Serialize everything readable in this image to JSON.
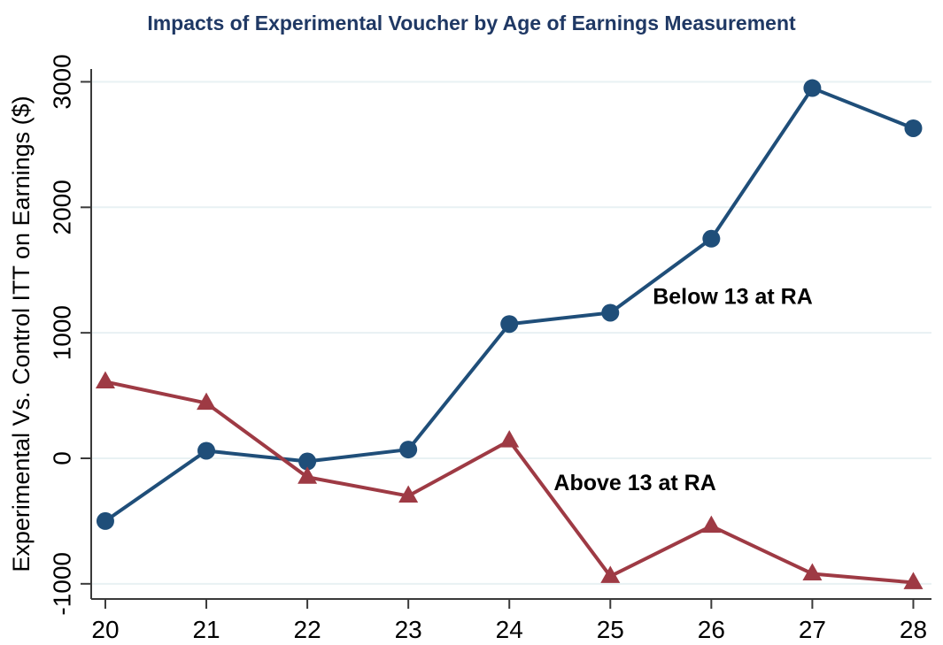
{
  "chart_data": {
    "type": "line",
    "title": "Impacts of Experimental Voucher by Age of Earnings Measurement",
    "ylabel": "Experimental Vs. Control ITT on Earnings ($)",
    "xlabel": "",
    "x": [
      20,
      21,
      22,
      23,
      24,
      25,
      26,
      27,
      28
    ],
    "series": [
      {
        "name": "Below 13 at RA",
        "marker": "circle",
        "color": "#1f4e79",
        "values": [
          -500,
          60,
          -25,
          70,
          1070,
          1160,
          1750,
          2950,
          2630
        ]
      },
      {
        "name": "Above 13 at RA",
        "marker": "triangle",
        "color": "#9e3a44",
        "values": [
          610,
          440,
          -150,
          -300,
          140,
          -940,
          -540,
          -920,
          -990
        ]
      }
    ],
    "annotations": [
      {
        "text": "Below 13 at RA",
        "x": 25.42,
        "y": 1230
      },
      {
        "text": "Above 13 at RA",
        "x": 24.44,
        "y": -255
      }
    ],
    "xticks": [
      20,
      21,
      22,
      23,
      24,
      25,
      26,
      27,
      28
    ],
    "yticks": [
      -1000,
      0,
      1000,
      2000,
      3000
    ],
    "xlim": [
      19.86,
      28.18
    ],
    "ylim": [
      -1121,
      3102
    ],
    "grid": "horizontal",
    "legend": "inline-text-labels",
    "style": {
      "title_color": "#1f3864",
      "axis_color": "#3a3a3a",
      "grid_color": "#e8f1f3",
      "tick_label_color": "#000000",
      "annotation_color": "#000000",
      "background": "#ffffff"
    }
  }
}
